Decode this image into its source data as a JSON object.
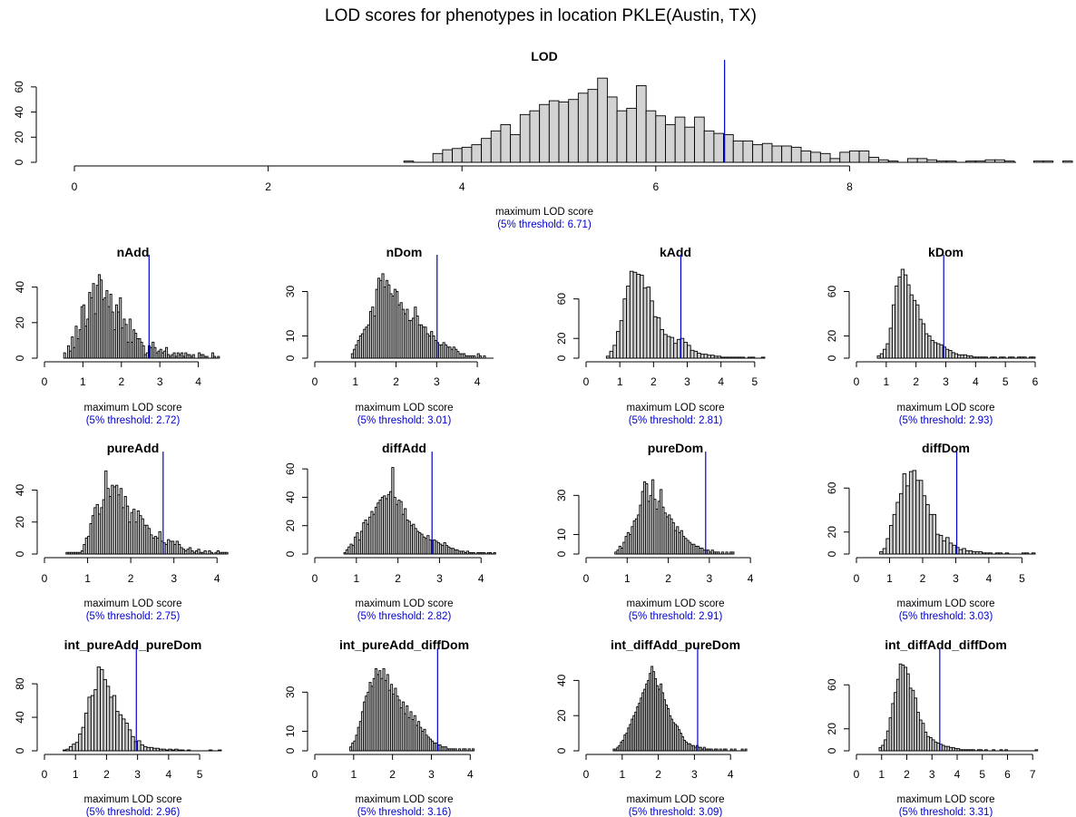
{
  "page": {
    "title": "LOD scores for phenotypes in location PKLE(Austin, TX)"
  },
  "colors": {
    "bar_fill": "#d3d3d3",
    "bar_stroke": "#000000",
    "threshold": "#0000cc"
  },
  "chart_data": [
    {
      "type": "bar",
      "title": "LOD",
      "xlabel": "maximum LOD score",
      "threshold_label": "(5% threshold: 6.71)",
      "threshold": 6.71,
      "xlim": [
        0,
        9.7
      ],
      "xticks": [
        0,
        2,
        4,
        6,
        8
      ],
      "ylim": [
        0,
        70
      ],
      "yticks": [
        0,
        20,
        40,
        60
      ],
      "bin_start": 3.4,
      "bin_width": 0.1,
      "counts": [
        1,
        0,
        0,
        7,
        10,
        11,
        12,
        14,
        19,
        25,
        30,
        22,
        38,
        41,
        46,
        49,
        48,
        50,
        55,
        58,
        67,
        52,
        41,
        43,
        61,
        41,
        37,
        30,
        36,
        28,
        36,
        25,
        23,
        22,
        17,
        17,
        14,
        15,
        13,
        13,
        12,
        9,
        8,
        7,
        3,
        8,
        9,
        9,
        4,
        2,
        1,
        0,
        3,
        3,
        2,
        1,
        1,
        0,
        1,
        1,
        2,
        2,
        1,
        0,
        0,
        1,
        1,
        0,
        1,
        0,
        1,
        1,
        0,
        0,
        1,
        0,
        1,
        0,
        0,
        1,
        0,
        1,
        0,
        0,
        1,
        0,
        1,
        0,
        0,
        0,
        1,
        0,
        1
      ]
    },
    {
      "type": "bar",
      "title": "nAdd",
      "xlabel": "maximum LOD score",
      "threshold_label": "(5% threshold: 2.72)",
      "threshold": 2.72,
      "xlim": [
        0,
        4.6
      ],
      "xticks": [
        0,
        1,
        2,
        3,
        4
      ],
      "ylim": [
        0,
        50
      ],
      "yticks": [
        0,
        20,
        40
      ],
      "bin_start": 0.5,
      "bin_width": 0.05,
      "counts": [
        3,
        0,
        7,
        4,
        12,
        6,
        18,
        11,
        16,
        29,
        30,
        18,
        22,
        37,
        34,
        42,
        25,
        41,
        47,
        44,
        33,
        34,
        38,
        29,
        36,
        26,
        16,
        30,
        26,
        34,
        17,
        22,
        19,
        9,
        22,
        9,
        16,
        14,
        11,
        11,
        9,
        7,
        2,
        3,
        7,
        6,
        9,
        6,
        3,
        4,
        5,
        3,
        4,
        6,
        2,
        1,
        2,
        3,
        1,
        3,
        2,
        3,
        1,
        3,
        2,
        2,
        1,
        2,
        0,
        0,
        3,
        2,
        2,
        1,
        1,
        0,
        0,
        3,
        1,
        0,
        1
      ]
    },
    {
      "type": "bar",
      "title": "nDom",
      "xlabel": "maximum LOD score",
      "threshold_label": "(5% threshold: 3.01)",
      "threshold": 3.01,
      "xlim": [
        0,
        4.4
      ],
      "xticks": [
        0,
        1,
        2,
        3,
        4
      ],
      "ylim": [
        0,
        40
      ],
      "yticks": [
        0,
        10,
        30
      ],
      "bin_start": 0.9,
      "bin_width": 0.05,
      "counts": [
        2,
        4,
        6,
        8,
        10,
        11,
        13,
        14,
        15,
        21,
        23,
        19,
        31,
        36,
        35,
        38,
        32,
        35,
        33,
        29,
        28,
        31,
        30,
        24,
        25,
        22,
        20,
        22,
        17,
        17,
        18,
        23,
        19,
        15,
        15,
        14,
        14,
        11,
        10,
        12,
        10,
        8,
        7,
        6,
        6,
        7,
        6,
        5,
        5,
        4,
        5,
        4,
        3,
        2,
        2,
        2,
        1,
        1,
        1,
        1,
        1,
        0,
        2,
        1,
        0,
        1,
        0,
        0,
        0,
        0
      ]
    },
    {
      "type": "bar",
      "title": "kAdd",
      "xlabel": "maximum LOD score",
      "threshold_label": "(5% threshold: 2.81)",
      "threshold": 2.81,
      "xlim": [
        0,
        5.3
      ],
      "xticks": [
        0,
        1,
        2,
        3,
        4,
        5
      ],
      "ylim": [
        0,
        90
      ],
      "yticks": [
        0,
        20,
        60
      ],
      "bin_start": 0.6,
      "bin_width": 0.1,
      "counts": [
        2,
        7,
        13,
        27,
        38,
        60,
        73,
        88,
        87,
        85,
        84,
        71,
        72,
        58,
        42,
        41,
        29,
        24,
        22,
        21,
        15,
        19,
        20,
        16,
        13,
        8,
        7,
        5,
        4,
        4,
        3,
        3,
        2,
        2,
        1,
        1,
        1,
        1,
        1,
        1,
        1,
        0,
        1,
        1,
        0,
        0,
        1
      ]
    },
    {
      "type": "bar",
      "title": "kDom",
      "xlabel": "maximum LOD score",
      "threshold_label": "(5% threshold: 2.93)",
      "threshold": 2.93,
      "xlim": [
        0,
        6
      ],
      "xticks": [
        0,
        1,
        2,
        3,
        4,
        5,
        6
      ],
      "ylim": [
        0,
        80
      ],
      "yticks": [
        0,
        20,
        60
      ],
      "bin_start": 0.7,
      "bin_width": 0.1,
      "counts": [
        2,
        4,
        8,
        13,
        27,
        48,
        65,
        73,
        80,
        75,
        66,
        57,
        52,
        48,
        35,
        31,
        22,
        20,
        16,
        14,
        13,
        12,
        10,
        8,
        7,
        5,
        4,
        3,
        3,
        3,
        2,
        2,
        1,
        1,
        1,
        1,
        1,
        0,
        1,
        1,
        0,
        1,
        1,
        0,
        1,
        1,
        0,
        1,
        1,
        1,
        0,
        1,
        1
      ]
    },
    {
      "type": "bar",
      "title": "pureAdd",
      "xlabel": "maximum LOD score",
      "threshold_label": "(5% threshold: 2.75)",
      "threshold": 2.75,
      "xlim": [
        0,
        4.1
      ],
      "xticks": [
        0,
        1,
        2,
        3,
        4
      ],
      "ylim": [
        0,
        55
      ],
      "yticks": [
        0,
        20,
        40
      ],
      "bin_start": 0.5,
      "bin_width": 0.05,
      "counts": [
        1,
        1,
        1,
        1,
        1,
        1,
        1,
        2,
        6,
        10,
        11,
        19,
        24,
        29,
        31,
        25,
        29,
        34,
        52,
        41,
        36,
        43,
        42,
        43,
        37,
        41,
        29,
        36,
        30,
        20,
        26,
        28,
        20,
        27,
        24,
        22,
        18,
        18,
        16,
        12,
        10,
        11,
        10,
        14,
        8,
        7,
        6,
        9,
        8,
        8,
        6,
        8,
        6,
        4,
        3,
        2,
        3,
        4,
        2,
        1,
        2,
        3,
        1,
        1,
        2,
        0,
        2,
        1,
        0,
        1,
        2,
        1,
        1,
        1,
        1
      ]
    },
    {
      "type": "bar",
      "title": "diffAdd",
      "xlabel": "maximum LOD score",
      "threshold_label": "(5% threshold: 2.82)",
      "threshold": 2.82,
      "xlim": [
        0,
        4.3
      ],
      "xticks": [
        0,
        1,
        2,
        3,
        4
      ],
      "ylim": [
        0,
        62
      ],
      "yticks": [
        0,
        20,
        40,
        60
      ],
      "bin_start": 0.7,
      "bin_width": 0.05,
      "counts": [
        1,
        3,
        5,
        7,
        6,
        12,
        15,
        10,
        16,
        22,
        24,
        21,
        26,
        30,
        28,
        33,
        36,
        38,
        40,
        41,
        39,
        42,
        44,
        61,
        40,
        35,
        38,
        37,
        28,
        32,
        24,
        23,
        20,
        21,
        18,
        16,
        15,
        14,
        12,
        11,
        13,
        10,
        9,
        10,
        9,
        8,
        7,
        6,
        8,
        6,
        5,
        4,
        4,
        3,
        3,
        2,
        2,
        2,
        1,
        2,
        1,
        1,
        1,
        0,
        1,
        1,
        1,
        1,
        0,
        1,
        1,
        0,
        1
      ]
    },
    {
      "type": "bar",
      "title": "pureDom",
      "xlabel": "maximum LOD score",
      "threshold_label": "(5% threshold: 2.91)",
      "threshold": 2.91,
      "xlim": [
        0,
        4.35
      ],
      "xticks": [
        0,
        1,
        2,
        3,
        4
      ],
      "ylim": [
        0,
        45
      ],
      "yticks": [
        0,
        10,
        30
      ],
      "bin_start": 0.7,
      "bin_width": 0.05,
      "counts": [
        1,
        2,
        4,
        3,
        6,
        9,
        11,
        10,
        14,
        17,
        18,
        20,
        25,
        32,
        37,
        36,
        27,
        30,
        38,
        28,
        23,
        27,
        33,
        24,
        21,
        19,
        20,
        18,
        16,
        12,
        14,
        11,
        12,
        9,
        8,
        7,
        6,
        5,
        5,
        4,
        4,
        3,
        3,
        2,
        2,
        2,
        1,
        2,
        1,
        1,
        1,
        0,
        1,
        0,
        1,
        0,
        1,
        1
      ]
    },
    {
      "type": "bar",
      "title": "diffDom",
      "xlabel": "maximum LOD score",
      "threshold_label": "(5% threshold: 3.03)",
      "threshold": 3.03,
      "xlim": [
        0,
        5.4
      ],
      "xticks": [
        0,
        1,
        2,
        3,
        4,
        5
      ],
      "ylim": [
        0,
        80
      ],
      "yticks": [
        0,
        20,
        60
      ],
      "bin_start": 0.7,
      "bin_width": 0.1,
      "counts": [
        2,
        5,
        14,
        26,
        36,
        47,
        55,
        73,
        62,
        75,
        76,
        67,
        67,
        53,
        45,
        36,
        36,
        18,
        17,
        12,
        15,
        10,
        8,
        6,
        4,
        5,
        3,
        3,
        2,
        2,
        2,
        1,
        1,
        1,
        0,
        1,
        1,
        0,
        1,
        0,
        0,
        0,
        0,
        1,
        1,
        0,
        1
      ]
    },
    {
      "type": "bar",
      "title": "int_pureAdd_pureDom",
      "xlabel": "maximum LOD score",
      "threshold_label": "(5% threshold: 2.96)",
      "threshold": 2.96,
      "xlim": [
        0,
        5.7
      ],
      "xticks": [
        0,
        1,
        2,
        3,
        4,
        5
      ],
      "ylim": [
        0,
        105
      ],
      "yticks": [
        0,
        40,
        80
      ],
      "bin_start": 0.6,
      "bin_width": 0.1,
      "counts": [
        1,
        2,
        5,
        8,
        10,
        20,
        28,
        45,
        64,
        66,
        73,
        100,
        97,
        85,
        77,
        64,
        66,
        47,
        43,
        38,
        33,
        25,
        17,
        11,
        12,
        7,
        5,
        4,
        4,
        3,
        3,
        2,
        2,
        1,
        2,
        1,
        2,
        1,
        1,
        0,
        1,
        0,
        0,
        0,
        0,
        0,
        0,
        1,
        0,
        0,
        1
      ]
    },
    {
      "type": "bar",
      "title": "int_pureAdd_diffDom",
      "xlabel": "maximum LOD score",
      "threshold_label": "(5% threshold: 3.16)",
      "threshold": 3.16,
      "xlim": [
        0,
        4.6
      ],
      "xticks": [
        0,
        1,
        2,
        3,
        4
      ],
      "ylim": [
        0,
        45
      ],
      "yticks": [
        0,
        10,
        30
      ],
      "bin_start": 0.9,
      "bin_width": 0.05,
      "counts": [
        2,
        4,
        5,
        8,
        12,
        15,
        20,
        25,
        28,
        30,
        35,
        33,
        37,
        42,
        39,
        41,
        37,
        42,
        36,
        39,
        31,
        34,
        29,
        32,
        28,
        26,
        22,
        25,
        19,
        23,
        17,
        20,
        16,
        18,
        13,
        15,
        12,
        10,
        11,
        8,
        7,
        6,
        5,
        4,
        4,
        3,
        3,
        2,
        2,
        2,
        1,
        1,
        1,
        1,
        1,
        0,
        1,
        0,
        1,
        1,
        0,
        1,
        0,
        1
      ]
    },
    {
      "type": "bar",
      "title": "int_diffAdd_pureDom",
      "xlabel": "maximum LOD score",
      "threshold_label": "(5% threshold: 3.09)",
      "threshold": 3.09,
      "xlim": [
        0,
        4.95
      ],
      "xticks": [
        0,
        1,
        2,
        3,
        4
      ],
      "ylim": [
        0,
        50
      ],
      "yticks": [
        0,
        20,
        40
      ],
      "bin_start": 0.75,
      "bin_width": 0.05,
      "counts": [
        1,
        1,
        2,
        3,
        5,
        6,
        9,
        10,
        13,
        15,
        18,
        20,
        22,
        25,
        27,
        30,
        33,
        35,
        38,
        40,
        44,
        48,
        45,
        41,
        37,
        35,
        38,
        33,
        29,
        26,
        24,
        20,
        18,
        16,
        15,
        14,
        12,
        10,
        8,
        6,
        5,
        4,
        4,
        3,
        3,
        2,
        3,
        2,
        2,
        1,
        2,
        1,
        1,
        1,
        1,
        0,
        1,
        1,
        0,
        1,
        0,
        1,
        1,
        0,
        0,
        1,
        0,
        1,
        0,
        0,
        0,
        1,
        0,
        1
      ]
    },
    {
      "type": "bar",
      "title": "int_diffAdd_diffDom",
      "xlabel": "maximum LOD score",
      "threshold_label": "(5% threshold: 3.31)",
      "threshold": 3.31,
      "xlim": [
        0,
        7.1
      ],
      "xticks": [
        0,
        1,
        2,
        3,
        4,
        5,
        6,
        7
      ],
      "ylim": [
        0,
        80
      ],
      "yticks": [
        0,
        20,
        60
      ],
      "bin_start": 0.9,
      "bin_width": 0.1,
      "counts": [
        3,
        5,
        10,
        18,
        30,
        43,
        53,
        65,
        79,
        78,
        76,
        70,
        57,
        55,
        48,
        35,
        28,
        25,
        17,
        13,
        12,
        10,
        8,
        7,
        6,
        5,
        4,
        4,
        3,
        3,
        2,
        2,
        1,
        1,
        1,
        1,
        1,
        1,
        0,
        1,
        1,
        0,
        1,
        0,
        0,
        1,
        0,
        0,
        1,
        0,
        1,
        0,
        0,
        0,
        0,
        0,
        0,
        0,
        0,
        0,
        0,
        0,
        1
      ]
    }
  ]
}
